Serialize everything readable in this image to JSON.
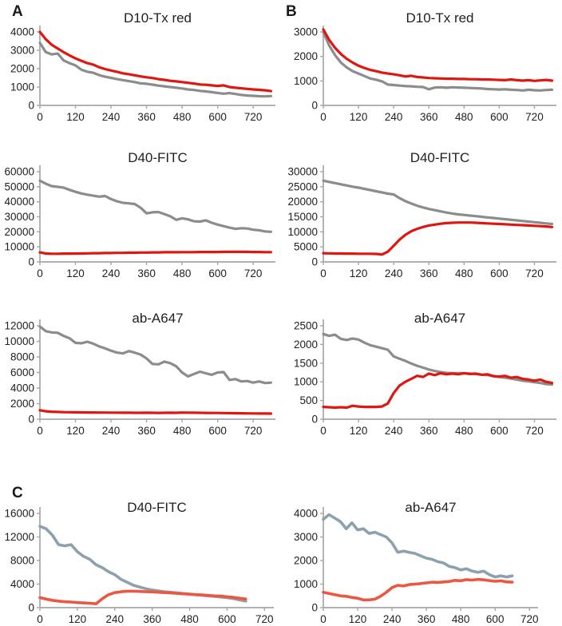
{
  "figure": {
    "panels": [
      {
        "label": "A"
      },
      {
        "label": "B"
      },
      {
        "label": "C"
      }
    ]
  },
  "chart_data": [
    {
      "type": "line",
      "panel": "A",
      "title": "D10-Tx red",
      "xlabel": "",
      "ylabel": "",
      "ylim": [
        0,
        4000
      ],
      "y_ticks": [
        0,
        1000,
        2000,
        3000,
        4000
      ],
      "x_ticks": [
        0,
        120,
        240,
        360,
        480,
        600,
        720
      ],
      "x_axis_max": 795,
      "x_start": 0,
      "x_step": 20,
      "grid": false,
      "legend": "none",
      "series": [
        {
          "name": "gray-line",
          "color": "#8c8c8c",
          "values": [
            3400,
            2900,
            2780,
            2820,
            2450,
            2300,
            2180,
            1950,
            1830,
            1780,
            1650,
            1560,
            1500,
            1430,
            1380,
            1320,
            1270,
            1200,
            1180,
            1130,
            1080,
            1040,
            1000,
            960,
            920,
            870,
            840,
            790,
            760,
            720,
            680,
            640,
            670,
            620,
            570,
            540,
            520,
            500,
            490,
            510
          ]
        },
        {
          "name": "red-line",
          "color": "#df1711",
          "values": [
            4000,
            3600,
            3300,
            3100,
            2900,
            2720,
            2560,
            2430,
            2300,
            2220,
            2080,
            1980,
            1900,
            1830,
            1750,
            1700,
            1640,
            1580,
            1530,
            1490,
            1430,
            1390,
            1340,
            1310,
            1270,
            1230,
            1190,
            1140,
            1120,
            1090,
            1060,
            1090,
            1000,
            960,
            930,
            900,
            870,
            850,
            820,
            780
          ]
        }
      ]
    },
    {
      "type": "line",
      "panel": "B",
      "title": "D10-Tx red",
      "xlabel": "",
      "ylabel": "",
      "ylim": [
        0,
        3000
      ],
      "y_ticks": [
        0,
        1000,
        2000,
        3000
      ],
      "x_ticks": [
        0,
        120,
        240,
        360,
        480,
        600,
        720
      ],
      "x_axis_max": 795,
      "x_start": 0,
      "x_step": 20,
      "grid": false,
      "legend": "none",
      "series": [
        {
          "name": "gray-line",
          "color": "#8c8c8c",
          "values": [
            3000,
            2450,
            2050,
            1750,
            1550,
            1400,
            1300,
            1200,
            1100,
            1050,
            980,
            850,
            830,
            810,
            790,
            780,
            760,
            750,
            660,
            730,
            740,
            720,
            740,
            730,
            720,
            710,
            700,
            690,
            670,
            660,
            650,
            660,
            640,
            630,
            610,
            640,
            620,
            610,
            630,
            640
          ]
        },
        {
          "name": "red-line",
          "color": "#df1711",
          "values": [
            3100,
            2680,
            2350,
            2100,
            1900,
            1750,
            1620,
            1530,
            1450,
            1400,
            1340,
            1300,
            1270,
            1230,
            1180,
            1210,
            1160,
            1140,
            1120,
            1110,
            1100,
            1090,
            1090,
            1080,
            1080,
            1070,
            1070,
            1060,
            1060,
            1050,
            1040,
            1030,
            1060,
            1030,
            1010,
            1030,
            1000,
            1020,
            1040,
            1010
          ]
        }
      ]
    },
    {
      "type": "line",
      "panel": "A",
      "title": "D40-FITC",
      "xlabel": "",
      "ylabel": "",
      "ylim": [
        0,
        60000
      ],
      "y_ticks": [
        0,
        10000,
        20000,
        30000,
        40000,
        50000,
        60000
      ],
      "x_ticks": [
        0,
        120,
        240,
        360,
        480,
        600,
        720
      ],
      "x_axis_max": 795,
      "x_start": 0,
      "x_step": 20,
      "grid": false,
      "legend": "none",
      "series": [
        {
          "name": "gray-line",
          "color": "#8c8c8c",
          "values": [
            54000,
            52000,
            50400,
            49900,
            49400,
            47900,
            46600,
            45500,
            44700,
            44000,
            43400,
            43800,
            41800,
            40300,
            39300,
            38900,
            38500,
            36000,
            32300,
            33000,
            33200,
            31800,
            30300,
            28000,
            29000,
            28300,
            27000,
            26800,
            27600,
            26000,
            24800,
            23800,
            22800,
            22000,
            22400,
            22200,
            21400,
            21000,
            20300,
            20000
          ]
        },
        {
          "name": "red-line",
          "color": "#df1711",
          "values": [
            6300,
            5600,
            5400,
            5400,
            5500,
            5500,
            5600,
            5600,
            5700,
            5800,
            5800,
            5900,
            5900,
            6000,
            6000,
            6100,
            6100,
            6200,
            6200,
            6300,
            6300,
            6400,
            6400,
            6400,
            6500,
            6500,
            6500,
            6600,
            6600,
            6600,
            6600,
            6700,
            6700,
            6700,
            6700,
            6700,
            6600,
            6600,
            6500,
            6500
          ]
        }
      ]
    },
    {
      "type": "line",
      "panel": "B",
      "title": "D40-FITC",
      "xlabel": "",
      "ylabel": "",
      "ylim": [
        0,
        30000
      ],
      "y_ticks": [
        0,
        5000,
        10000,
        15000,
        20000,
        25000,
        30000
      ],
      "x_ticks": [
        0,
        120,
        240,
        360,
        480,
        600,
        720
      ],
      "x_axis_max": 795,
      "x_start": 0,
      "x_step": 20,
      "grid": false,
      "legend": "none",
      "series": [
        {
          "name": "gray-line",
          "color": "#8c8c8c",
          "values": [
            27000,
            26600,
            26200,
            25800,
            25400,
            25000,
            24700,
            24300,
            23900,
            23500,
            23100,
            22700,
            22400,
            21200,
            20200,
            19400,
            18700,
            18100,
            17600,
            17200,
            16800,
            16400,
            16100,
            15800,
            15600,
            15400,
            15200,
            15000,
            14800,
            14600,
            14400,
            14200,
            14000,
            13800,
            13600,
            13400,
            13200,
            13000,
            12800,
            12600
          ]
        },
        {
          "name": "red-line",
          "color": "#df1711",
          "values": [
            2900,
            2850,
            2800,
            2800,
            2750,
            2750,
            2700,
            2700,
            2700,
            2650,
            2450,
            3400,
            5400,
            7400,
            9000,
            10200,
            11000,
            11600,
            12100,
            12400,
            12700,
            12900,
            13000,
            13100,
            13100,
            13100,
            13000,
            12900,
            12800,
            12700,
            12600,
            12500,
            12400,
            12300,
            12200,
            12100,
            12000,
            11900,
            11800,
            11600
          ]
        }
      ]
    },
    {
      "type": "line",
      "panel": "A",
      "title": "ab-A647",
      "xlabel": "",
      "ylabel": "",
      "ylim": [
        0,
        12000
      ],
      "y_ticks": [
        0,
        2000,
        4000,
        6000,
        8000,
        10000,
        12000
      ],
      "x_ticks": [
        0,
        120,
        240,
        360,
        480,
        600,
        720
      ],
      "x_axis_max": 795,
      "x_start": 0,
      "x_step": 20,
      "grid": false,
      "legend": "none",
      "series": [
        {
          "name": "gray-line",
          "color": "#8c8c8c",
          "values": [
            11900,
            11300,
            11150,
            11100,
            10700,
            10400,
            9800,
            9750,
            9950,
            9700,
            9350,
            9100,
            8800,
            8550,
            8450,
            8750,
            8550,
            8300,
            7800,
            7100,
            7050,
            7400,
            7200,
            6800,
            6000,
            5500,
            5800,
            6100,
            5900,
            5700,
            6000,
            6050,
            5050,
            5150,
            4850,
            4900,
            4700,
            4850,
            4650,
            4700
          ]
        },
        {
          "name": "red-line",
          "color": "#df1711",
          "values": [
            1150,
            1020,
            960,
            930,
            900,
            890,
            880,
            870,
            860,
            860,
            850,
            850,
            840,
            840,
            830,
            830,
            820,
            820,
            830,
            820,
            810,
            820,
            830,
            820,
            850,
            840,
            830,
            820,
            810,
            800,
            800,
            790,
            780,
            770,
            760,
            750,
            740,
            730,
            730,
            720
          ]
        }
      ]
    },
    {
      "type": "line",
      "panel": "B",
      "title": "ab-A647",
      "xlabel": "",
      "ylabel": "",
      "ylim": [
        0,
        2500
      ],
      "y_ticks": [
        0,
        500,
        1000,
        1500,
        2000,
        2500
      ],
      "x_ticks": [
        0,
        120,
        240,
        360,
        480,
        600,
        720
      ],
      "x_axis_max": 795,
      "x_start": 0,
      "x_step": 20,
      "grid": false,
      "legend": "none",
      "series": [
        {
          "name": "gray-line",
          "color": "#8c8c8c",
          "values": [
            2280,
            2230,
            2260,
            2150,
            2120,
            2160,
            2130,
            2050,
            1980,
            1940,
            1900,
            1860,
            1680,
            1620,
            1560,
            1490,
            1430,
            1380,
            1330,
            1290,
            1260,
            1240,
            1230,
            1230,
            1230,
            1220,
            1210,
            1190,
            1180,
            1160,
            1130,
            1110,
            1090,
            1060,
            1030,
            1010,
            990,
            970,
            940,
            930
          ]
        },
        {
          "name": "red-line",
          "color": "#df1711",
          "values": [
            330,
            320,
            310,
            320,
            310,
            360,
            340,
            330,
            330,
            330,
            340,
            420,
            700,
            900,
            1000,
            1080,
            1160,
            1130,
            1220,
            1180,
            1230,
            1200,
            1220,
            1200,
            1230,
            1210,
            1220,
            1190,
            1200,
            1150,
            1140,
            1160,
            1110,
            1130,
            1080,
            1060,
            1030,
            1060,
            1000,
            970
          ]
        }
      ]
    },
    {
      "type": "line",
      "panel": "C",
      "title": "D40-FITC",
      "xlabel": "",
      "ylabel": "",
      "ylim": [
        0,
        16000
      ],
      "y_ticks": [
        0,
        4000,
        8000,
        12000,
        16000
      ],
      "x_ticks": [
        0,
        120,
        240,
        360,
        480,
        600,
        720
      ],
      "x_axis_max": 750,
      "x_start": 0,
      "x_step": 20,
      "grid": false,
      "legend": "none",
      "series": [
        {
          "name": "slate-line",
          "color": "#8da1ad",
          "values": [
            13800,
            13400,
            12300,
            10700,
            10500,
            10700,
            9500,
            8700,
            8200,
            7300,
            6800,
            6100,
            5600,
            4800,
            4300,
            3800,
            3500,
            3200,
            3000,
            2850,
            2700,
            2600,
            2500,
            2400,
            2300,
            2200,
            2100,
            2000,
            1900,
            1800,
            1700,
            1550,
            1300,
            1100
          ]
        },
        {
          "name": "orange-line",
          "color": "#eb5741",
          "values": [
            1700,
            1450,
            1250,
            1100,
            1000,
            950,
            850,
            800,
            750,
            650,
            1500,
            2200,
            2550,
            2700,
            2800,
            2800,
            2750,
            2700,
            2680,
            2620,
            2550,
            2500,
            2420,
            2350,
            2280,
            2200,
            2150,
            2080,
            2000,
            1950,
            1850,
            1750,
            1600,
            1450
          ]
        }
      ]
    },
    {
      "type": "line",
      "panel": "C",
      "title": "ab-A647",
      "xlabel": "",
      "ylabel": "",
      "ylim": [
        0,
        4000
      ],
      "y_ticks": [
        0,
        1000,
        2000,
        3000,
        4000
      ],
      "x_ticks": [
        0,
        120,
        240,
        360,
        480,
        600,
        720
      ],
      "x_axis_max": 750,
      "x_start": 0,
      "x_step": 20,
      "grid": false,
      "legend": "none",
      "series": [
        {
          "name": "slate-line",
          "color": "#8da1ad",
          "values": [
            3750,
            3950,
            3800,
            3650,
            3350,
            3600,
            3300,
            3350,
            3150,
            3200,
            3100,
            3000,
            2750,
            2350,
            2400,
            2350,
            2300,
            2200,
            2100,
            2050,
            1950,
            1900,
            1750,
            1700,
            1600,
            1650,
            1550,
            1500,
            1550,
            1400,
            1300,
            1350,
            1300,
            1350
          ]
        },
        {
          "name": "orange-line",
          "color": "#eb5741",
          "values": [
            650,
            600,
            550,
            500,
            480,
            430,
            400,
            330,
            330,
            360,
            480,
            650,
            850,
            950,
            920,
            980,
            1000,
            1020,
            1050,
            1080,
            1070,
            1090,
            1110,
            1160,
            1140,
            1190,
            1170,
            1200,
            1180,
            1150,
            1120,
            1140,
            1090,
            1080
          ]
        }
      ]
    }
  ],
  "style": {
    "axis_color": "#a6a6a6",
    "text_color": "#212121"
  }
}
